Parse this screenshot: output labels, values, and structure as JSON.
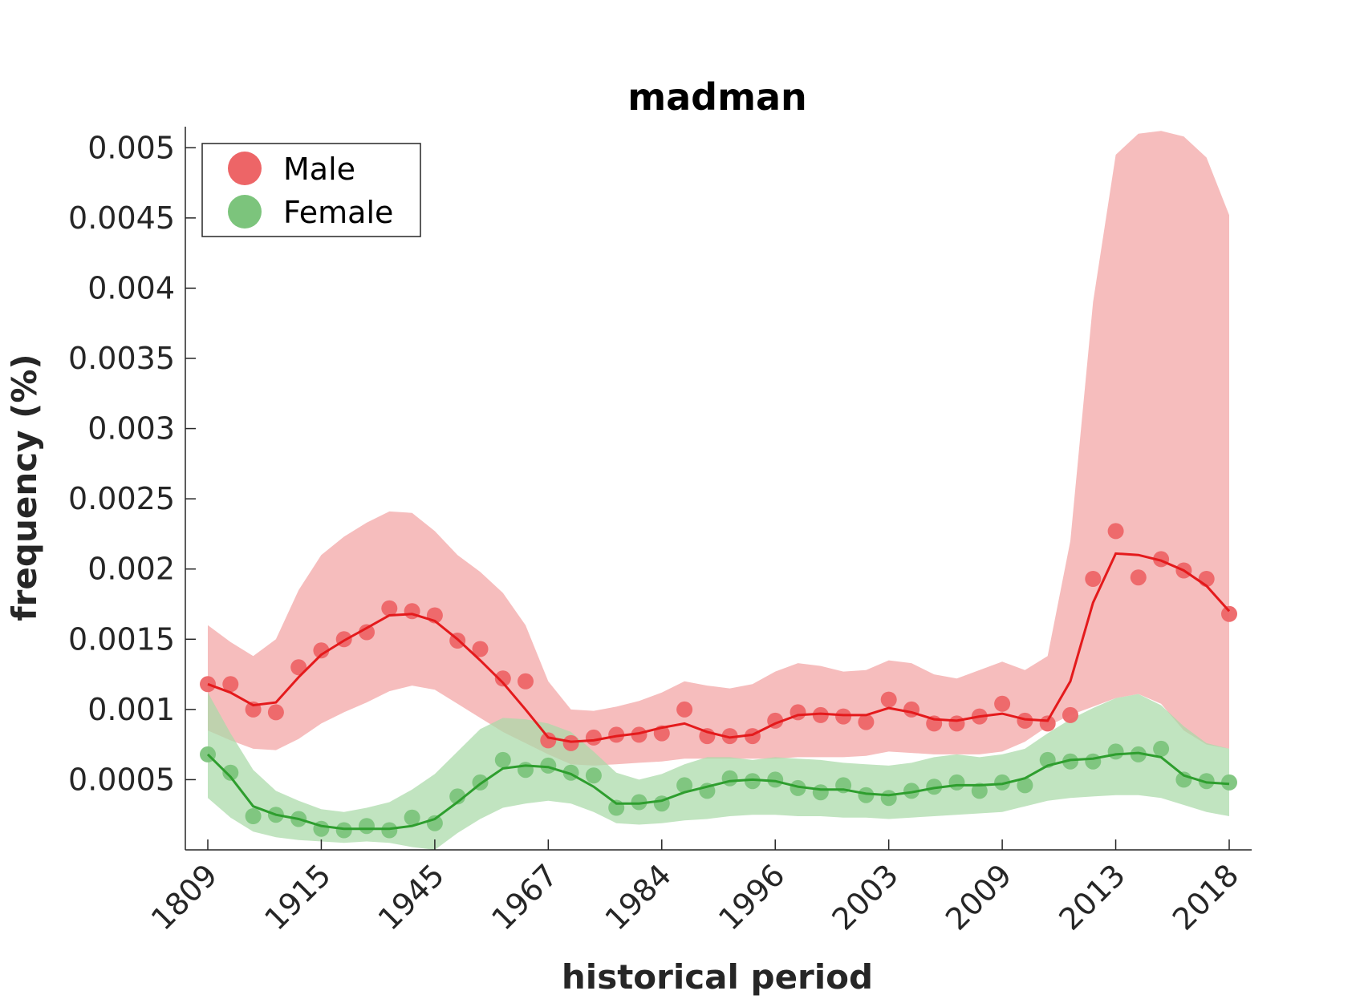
{
  "chart_data": {
    "type": "line",
    "title": "madman",
    "xlabel": "historical period",
    "ylabel": "frequency (%)",
    "ylim": [
      0,
      0.00515
    ],
    "y_ticks": [
      0.0005,
      0.001,
      0.0015,
      0.002,
      0.0025,
      0.003,
      0.0035,
      0.004,
      0.0045,
      0.005
    ],
    "y_tick_labels": [
      "0.0005",
      "0.001",
      "0.0015",
      "0.002",
      "0.0025",
      "0.003",
      "0.0035",
      "0.004",
      "0.0045",
      "0.005"
    ],
    "x_tick_labels": [
      "1809",
      "1915",
      "1945",
      "1967",
      "1984",
      "1996",
      "2003",
      "2009",
      "2013",
      "2018"
    ],
    "x_tick_indices": [
      0,
      5,
      10,
      15,
      20,
      25,
      30,
      35,
      40,
      45
    ],
    "n_points": 46,
    "grid": false,
    "legend_position": "top-left",
    "series": [
      {
        "name": "Male",
        "color": "#e41a1c",
        "marker_color": "#ed6567",
        "band_color": "#f2a3a4",
        "points": [
          0.00118,
          0.00118,
          0.001,
          0.00098,
          0.0013,
          0.00142,
          0.0015,
          0.00155,
          0.00172,
          0.0017,
          0.00167,
          0.00149,
          0.00143,
          0.00122,
          0.0012,
          0.00078,
          0.00076,
          0.0008,
          0.00082,
          0.00082,
          0.00083,
          0.001,
          0.00081,
          0.00081,
          0.00081,
          0.00092,
          0.00098,
          0.00096,
          0.00095,
          0.00091,
          0.00107,
          0.001,
          0.0009,
          0.0009,
          0.00095,
          0.00104,
          0.00092,
          0.0009,
          0.00096,
          0.00193,
          0.00227,
          0.00194,
          0.00207,
          0.00199,
          0.00193,
          0.00168
        ],
        "smooth": [
          0.00118,
          0.00112,
          0.00103,
          0.00105,
          0.00123,
          0.00139,
          0.00149,
          0.00158,
          0.00167,
          0.00168,
          0.00163,
          0.0015,
          0.00135,
          0.00119,
          0.001,
          0.0008,
          0.00077,
          0.00078,
          0.00081,
          0.00083,
          0.00087,
          0.0009,
          0.00084,
          0.0008,
          0.00082,
          0.0009,
          0.00096,
          0.00097,
          0.00096,
          0.00096,
          0.00101,
          0.00098,
          0.00093,
          0.00092,
          0.00095,
          0.00097,
          0.00093,
          0.00092,
          0.0012,
          0.00176,
          0.00211,
          0.0021,
          0.00206,
          0.00199,
          0.00188,
          0.0017
        ],
        "upper": [
          0.0016,
          0.00148,
          0.00138,
          0.0015,
          0.00185,
          0.0021,
          0.00223,
          0.00233,
          0.00241,
          0.0024,
          0.00227,
          0.0021,
          0.00198,
          0.00183,
          0.0016,
          0.0012,
          0.001,
          0.00099,
          0.00102,
          0.00106,
          0.00112,
          0.0012,
          0.00117,
          0.00115,
          0.00118,
          0.00127,
          0.00133,
          0.00131,
          0.00127,
          0.00128,
          0.00135,
          0.00133,
          0.00125,
          0.00122,
          0.00128,
          0.00134,
          0.00128,
          0.00138,
          0.0022,
          0.0039,
          0.00495,
          0.0051,
          0.00512,
          0.00508,
          0.00493,
          0.00452
        ],
        "lower": [
          0.00085,
          0.00078,
          0.00072,
          0.00071,
          0.00079,
          0.0009,
          0.00098,
          0.00105,
          0.00113,
          0.00117,
          0.00114,
          0.00104,
          0.00094,
          0.00084,
          0.00076,
          0.00068,
          0.00061,
          0.0006,
          0.00061,
          0.00062,
          0.00063,
          0.00065,
          0.00065,
          0.00065,
          0.00065,
          0.00065,
          0.00066,
          0.00066,
          0.00066,
          0.00067,
          0.0007,
          0.00069,
          0.00068,
          0.00068,
          0.00068,
          0.0007,
          0.00077,
          0.00088,
          0.00096,
          0.00102,
          0.00108,
          0.00111,
          0.00104,
          0.00085,
          0.00075,
          0.00072
        ]
      },
      {
        "name": "Female",
        "color": "#2e9e2e",
        "marker_color": "#7cc47c",
        "band_color": "#a9daa8",
        "points": [
          0.00068,
          0.00055,
          0.00024,
          0.00025,
          0.00022,
          0.00015,
          0.00014,
          0.00017,
          0.00014,
          0.00023,
          0.00019,
          0.00038,
          0.00048,
          0.00064,
          0.00057,
          0.0006,
          0.00055,
          0.00053,
          0.0003,
          0.00034,
          0.00033,
          0.00046,
          0.00042,
          0.00051,
          0.00049,
          0.0005,
          0.00044,
          0.00041,
          0.00046,
          0.00039,
          0.00037,
          0.00042,
          0.00045,
          0.00048,
          0.00042,
          0.00048,
          0.00046,
          0.00064,
          0.00063,
          0.00063,
          0.0007,
          0.00068,
          0.00072,
          0.0005,
          0.00049,
          0.00048
        ],
        "smooth": [
          0.00068,
          0.00052,
          0.00031,
          0.00025,
          0.00022,
          0.00017,
          0.00015,
          0.00015,
          0.00015,
          0.00017,
          0.00022,
          0.00034,
          0.00047,
          0.00058,
          0.0006,
          0.00059,
          0.00054,
          0.00045,
          0.00033,
          0.00033,
          0.00035,
          0.00041,
          0.00045,
          0.00049,
          0.0005,
          0.00049,
          0.00045,
          0.00043,
          0.00043,
          0.0004,
          0.00039,
          0.00041,
          0.00044,
          0.00046,
          0.00046,
          0.00047,
          0.00051,
          0.0006,
          0.00064,
          0.00065,
          0.00068,
          0.00069,
          0.00066,
          0.00053,
          0.00048,
          0.00047
        ],
        "upper": [
          0.00112,
          0.00083,
          0.00057,
          0.00042,
          0.00035,
          0.00029,
          0.00027,
          0.0003,
          0.00034,
          0.00043,
          0.00054,
          0.0007,
          0.00086,
          0.00094,
          0.00093,
          0.0009,
          0.00084,
          0.0007,
          0.00055,
          0.0005,
          0.00054,
          0.00061,
          0.00066,
          0.00066,
          0.00064,
          0.00066,
          0.00065,
          0.00064,
          0.00062,
          0.00061,
          0.0006,
          0.00062,
          0.00066,
          0.00068,
          0.00066,
          0.00068,
          0.00072,
          0.00083,
          0.00093,
          0.00101,
          0.00108,
          0.00111,
          0.00103,
          0.00088,
          0.00076,
          0.00072
        ],
        "lower": [
          0.00037,
          0.00023,
          0.00013,
          9e-05,
          7e-05,
          6e-05,
          5e-05,
          6e-05,
          5e-05,
          2e-05,
          0.0,
          0.00012,
          0.00022,
          0.0003,
          0.00033,
          0.00035,
          0.00033,
          0.00027,
          0.00019,
          0.00018,
          0.00019,
          0.00021,
          0.00022,
          0.00024,
          0.00025,
          0.00025,
          0.00024,
          0.00024,
          0.00023,
          0.00023,
          0.00022,
          0.00023,
          0.00024,
          0.00025,
          0.00026,
          0.00027,
          0.00031,
          0.00035,
          0.00037,
          0.00038,
          0.00039,
          0.00039,
          0.00037,
          0.00032,
          0.00027,
          0.00024
        ]
      }
    ]
  }
}
